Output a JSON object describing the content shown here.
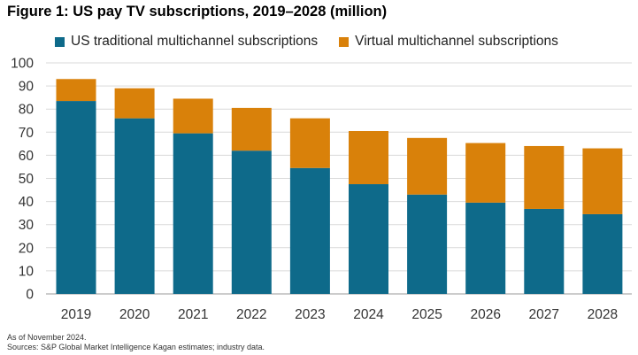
{
  "chart_data": {
    "type": "stacked-bar",
    "title": "Figure 1: US pay TV subscriptions, 2019–2028 (million)",
    "categories": [
      "2019",
      "2020",
      "2021",
      "2022",
      "2023",
      "2024",
      "2025",
      "2026",
      "2027",
      "2028"
    ],
    "series": [
      {
        "name": "US traditional multichannel subscriptions",
        "color": "#0e6a8a",
        "values": [
          83.5,
          76,
          69.5,
          62,
          54.5,
          47.5,
          43,
          39.5,
          36.8,
          34.5
        ]
      },
      {
        "name": "Virtual multichannel subscriptions",
        "color": "#d9810a",
        "values": [
          9.5,
          13,
          15,
          18.5,
          21.5,
          23,
          24.5,
          25.8,
          27.2,
          28.5
        ]
      }
    ],
    "y_ticks": [
      "0",
      "10",
      "20",
      "30",
      "40",
      "50",
      "60",
      "70",
      "80",
      "90",
      "100"
    ],
    "ylim": [
      0,
      100
    ],
    "xlabel": "",
    "ylabel": "",
    "grid": true,
    "legend_position": "top"
  },
  "footnote": {
    "line1": "As of November 2024.",
    "line2": "Sources: S&P Global Market Intelligence Kagan estimates; industry data."
  }
}
